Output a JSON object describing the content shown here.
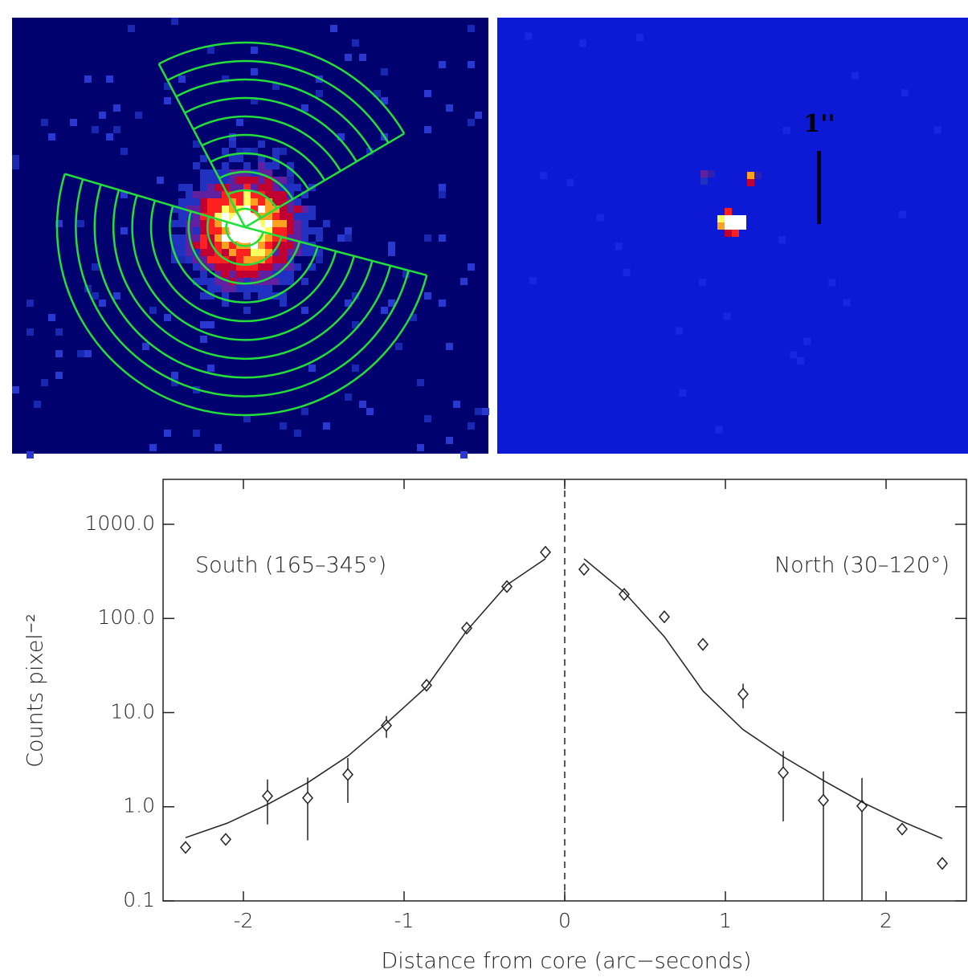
{
  "images": {
    "scale_label": "1''"
  },
  "chart_data": {
    "type": "scatter",
    "xlabel": "Distance from core (arc−seconds)",
    "ylabel": "Counts pixel⁻²",
    "log_y": true,
    "xlim": [
      -2.5,
      2.5
    ],
    "ylim": [
      0.1,
      3000
    ],
    "xticks": [
      -2,
      -1,
      0,
      1,
      2
    ],
    "yticks": [
      0.1,
      {
        "value": 1,
        "label": "1.0"
      },
      {
        "value": 10,
        "label": "10.0"
      },
      {
        "value": 100,
        "label": "100.0"
      },
      {
        "value": 1000,
        "label": "1000.0"
      }
    ],
    "vlines": [
      0
    ],
    "annotations": [
      "South (165–345°)",
      "North (30–120°)"
    ],
    "color": "#222222",
    "series": [
      {
        "type": "scatter",
        "x": [
          -2.36,
          -2.11,
          -1.85,
          -1.6,
          -1.35,
          -1.11,
          -0.86,
          -0.61,
          -0.36,
          -0.12
        ],
        "values": [
          0.37,
          0.45,
          1.3,
          1.24,
          2.2,
          7.3,
          19.5,
          79,
          218,
          505
        ],
        "errors": [
          null,
          null,
          0.65,
          0.8,
          1.1,
          1.9,
          null,
          null,
          null,
          null
        ]
      },
      {
        "type": "scatter",
        "x": [
          0.12,
          0.37,
          0.62,
          0.86,
          1.11,
          1.36,
          1.61,
          1.85,
          2.1,
          2.35
        ],
        "values": [
          333,
          180,
          104,
          53,
          15.7,
          2.3,
          1.17,
          1.02,
          0.58,
          0.25
        ],
        "errors": [
          null,
          null,
          null,
          null,
          4.6,
          1.6,
          1.2,
          1.0,
          null,
          null
        ]
      },
      {
        "type": "line",
        "x": [
          -2.36,
          -2.1,
          -1.85,
          -1.6,
          -1.35,
          -1.11,
          -0.86,
          -0.61,
          -0.36,
          -0.12
        ],
        "values": [
          0.47,
          0.67,
          1.06,
          1.8,
          3.45,
          7.7,
          18.8,
          74,
          227,
          430
        ]
      },
      {
        "type": "line",
        "x": [
          0.12,
          0.37,
          0.62,
          0.86,
          1.11,
          1.36,
          1.61,
          1.85,
          2.1,
          2.35
        ],
        "values": [
          430,
          190,
          64,
          17,
          6.6,
          3.4,
          1.9,
          1.12,
          0.7,
          0.46
        ]
      }
    ]
  }
}
